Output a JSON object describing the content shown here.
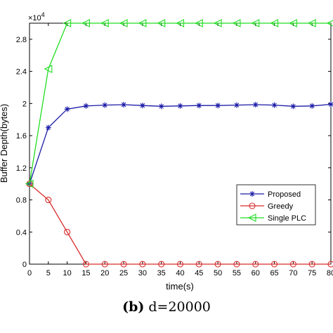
{
  "chart_data": {
    "type": "line",
    "x": [
      0,
      5,
      10,
      15,
      20,
      25,
      30,
      35,
      40,
      45,
      50,
      55,
      60,
      65,
      70,
      75,
      80
    ],
    "xlabel": "time(s)",
    "ylabel": "Buffer Depth(bytes)",
    "y_exponent_label": "×10",
    "y_exponent_power": "4",
    "xlim": [
      0,
      80
    ],
    "ylim": [
      0,
      3.0
    ],
    "x_ticks": [
      "0",
      "5",
      "10",
      "15",
      "20",
      "25",
      "30",
      "35",
      "40",
      "45",
      "50",
      "55",
      "60",
      "65",
      "70",
      "75",
      "80"
    ],
    "y_ticks": [
      "0",
      "0.4",
      "0.8",
      "1.2",
      "1.6",
      "2",
      "2.4",
      "2.8"
    ],
    "y_tick_values": [
      0,
      0.4,
      0.8,
      1.2,
      1.6,
      2.0,
      2.4,
      2.8
    ],
    "grid": false,
    "legend_position": "center-right",
    "series": [
      {
        "name": "Proposed",
        "color": "#1a1aa8",
        "marker": "star",
        "values": [
          1.0,
          1.7,
          1.93,
          1.97,
          1.98,
          1.985,
          1.975,
          1.965,
          1.97,
          1.975,
          1.975,
          1.98,
          1.985,
          1.98,
          1.965,
          1.97,
          1.99
        ]
      },
      {
        "name": "Greedy",
        "color": "#d92a2a",
        "marker": "circle",
        "values": [
          1.0,
          0.8,
          0.4,
          0,
          0,
          0,
          0,
          0,
          0,
          0,
          0,
          0,
          0,
          0,
          0,
          0,
          0
        ]
      },
      {
        "name": "Single PLC",
        "color": "#22dd22",
        "marker": "triangle-left",
        "values": [
          1.0,
          2.43,
          3.0,
          3.0,
          3.0,
          3.0,
          3.0,
          3.0,
          3.0,
          3.0,
          3.0,
          3.0,
          3.0,
          3.0,
          3.0,
          3.0,
          3.0
        ]
      }
    ]
  },
  "caption": {
    "tag": "(b)",
    "text": "d=20000"
  }
}
